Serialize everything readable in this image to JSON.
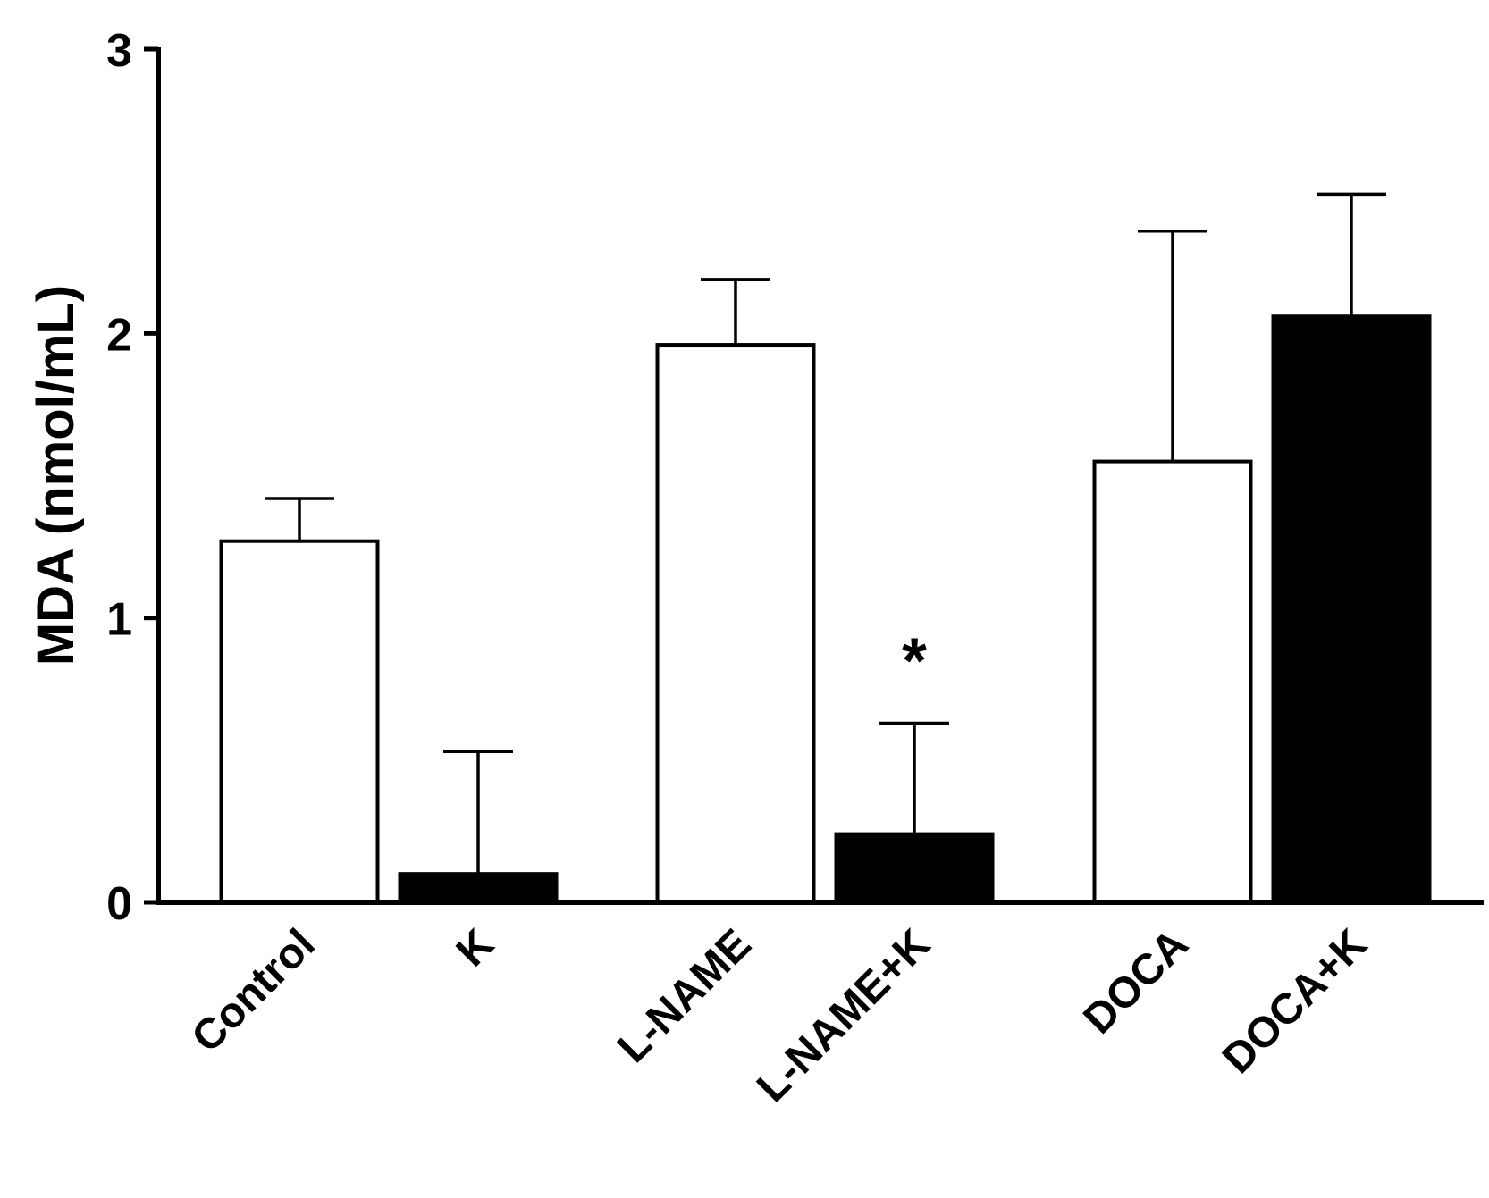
{
  "chart_data": {
    "type": "bar",
    "title": "",
    "xlabel": "",
    "ylabel": "MDA (nmol/mL)",
    "ylim": [
      0,
      3
    ],
    "yticks": [
      0,
      1,
      2,
      3
    ],
    "grid": false,
    "categories": [
      "Control",
      "K",
      "L-NAME",
      "L-NAME+K",
      "DOCA",
      "DOCA+K"
    ],
    "values": [
      1.27,
      0.1,
      1.96,
      0.24,
      1.55,
      2.06
    ],
    "errors": [
      0.15,
      0.43,
      0.23,
      0.39,
      0.81,
      0.43
    ],
    "fills": [
      "#ffffff",
      "#000000",
      "#ffffff",
      "#000000",
      "#ffffff",
      "#000000"
    ],
    "annotations": [
      {
        "category": "L-NAME+K",
        "text": "*"
      }
    ]
  }
}
